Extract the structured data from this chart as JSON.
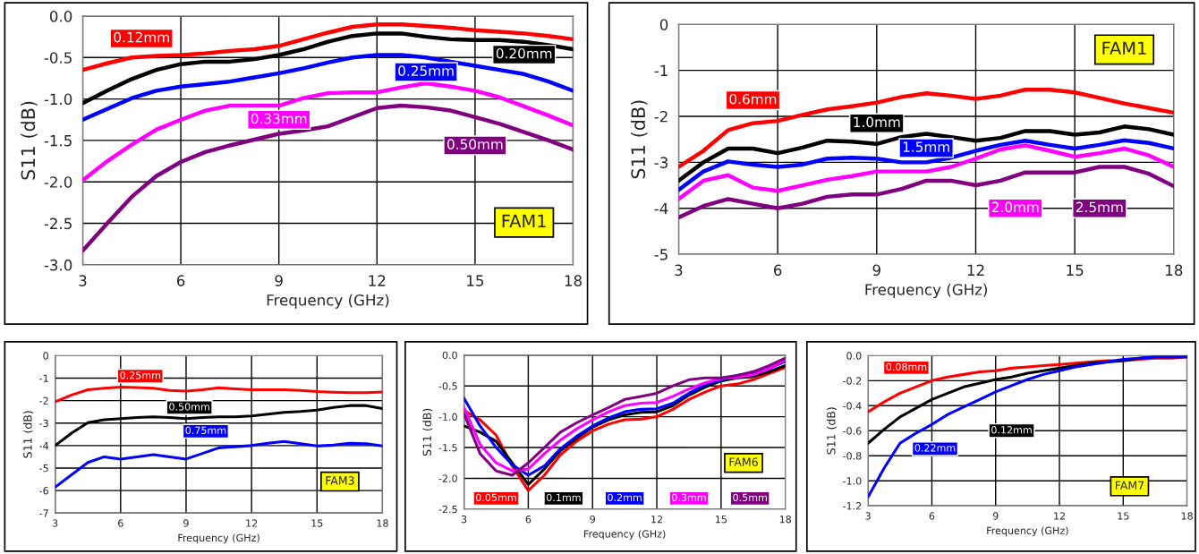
{
  "chart_data": [
    {
      "type": "line",
      "xlabel": "Frequency (GHz)",
      "ylabel": "S11 (dB)",
      "annotations": [
        "FAM1"
      ],
      "grid": true,
      "xlim": [
        3,
        18
      ],
      "xticks": [
        3,
        6,
        9,
        12,
        15,
        18
      ],
      "ylim": [
        -3.0,
        0.0
      ],
      "yticks": [
        {
          "value": -3,
          "label": "-3.0"
        },
        {
          "value": -2.5,
          "label": "-2.5"
        },
        {
          "value": -2,
          "label": "-2.0"
        },
        {
          "value": -1.5,
          "label": "-1.5"
        },
        {
          "value": -1,
          "label": "-1.0"
        },
        {
          "value": -0.5,
          "label": "-0.5"
        },
        {
          "value": 0,
          "label": "0.0"
        }
      ],
      "x": [
        3,
        3.75,
        4.5,
        5.25,
        6,
        6.75,
        7.5,
        8.25,
        9,
        9.75,
        10.5,
        11.25,
        12,
        12.75,
        13.5,
        14.25,
        15,
        15.75,
        16.5,
        17.25,
        18
      ],
      "series": [
        {
          "name": "0.12mm",
          "color": "#ff0000",
          "values": [
            -0.65,
            -0.57,
            -0.5,
            -0.48,
            -0.47,
            -0.45,
            -0.42,
            -0.4,
            -0.36,
            -0.28,
            -0.2,
            -0.13,
            -0.1,
            -0.1,
            -0.12,
            -0.14,
            -0.17,
            -0.19,
            -0.21,
            -0.24,
            -0.28
          ]
        },
        {
          "name": "0.20mm",
          "color": "#000000",
          "values": [
            -1.05,
            -0.9,
            -0.76,
            -0.65,
            -0.58,
            -0.55,
            -0.55,
            -0.52,
            -0.47,
            -0.4,
            -0.31,
            -0.24,
            -0.21,
            -0.21,
            -0.25,
            -0.28,
            -0.29,
            -0.29,
            -0.31,
            -0.35,
            -0.4
          ]
        },
        {
          "name": "0.25mm",
          "color": "#0000ff",
          "values": [
            -1.25,
            -1.12,
            -0.99,
            -0.9,
            -0.85,
            -0.82,
            -0.79,
            -0.74,
            -0.69,
            -0.63,
            -0.56,
            -0.5,
            -0.47,
            -0.47,
            -0.5,
            -0.55,
            -0.6,
            -0.65,
            -0.7,
            -0.79,
            -0.9
          ]
        },
        {
          "name": "0.33mm",
          "color": "#ff00ff",
          "values": [
            -1.98,
            -1.75,
            -1.55,
            -1.37,
            -1.25,
            -1.14,
            -1.08,
            -1.08,
            -1.08,
            -0.99,
            -0.93,
            -0.92,
            -0.92,
            -0.86,
            -0.81,
            -0.85,
            -0.9,
            -0.98,
            -1.09,
            -1.2,
            -1.32
          ]
        },
        {
          "name": "0.50mm",
          "color": "#800080",
          "values": [
            -2.83,
            -2.5,
            -2.18,
            -1.93,
            -1.76,
            -1.64,
            -1.56,
            -1.49,
            -1.42,
            -1.38,
            -1.33,
            -1.22,
            -1.11,
            -1.08,
            -1.1,
            -1.14,
            -1.22,
            -1.3,
            -1.4,
            -1.5,
            -1.61
          ]
        }
      ]
    },
    {
      "type": "line",
      "xlabel": "Frequency (GHz)",
      "ylabel": "S11 (dB)",
      "annotations": [
        "FAM1"
      ],
      "grid": true,
      "xlim": [
        3,
        18
      ],
      "xticks": [
        3,
        6,
        9,
        12,
        15,
        18
      ],
      "ylim": [
        -5,
        0
      ],
      "yticks": [
        -5,
        -4,
        -3,
        -2,
        -1,
        0
      ],
      "x": [
        3,
        3.75,
        4.5,
        5.25,
        6,
        6.75,
        7.5,
        8.25,
        9,
        9.75,
        10.5,
        11.25,
        12,
        12.75,
        13.5,
        14.25,
        15,
        15.75,
        16.5,
        17.25,
        18
      ],
      "series": [
        {
          "name": "0.6mm",
          "color": "#ff0000",
          "values": [
            -3.1,
            -2.75,
            -2.3,
            -2.15,
            -2.1,
            -1.97,
            -1.85,
            -1.78,
            -1.7,
            -1.58,
            -1.5,
            -1.55,
            -1.62,
            -1.55,
            -1.42,
            -1.42,
            -1.48,
            -1.6,
            -1.72,
            -1.82,
            -1.92
          ]
        },
        {
          "name": "1.0mm",
          "color": "#000000",
          "values": [
            -3.4,
            -3.0,
            -2.7,
            -2.7,
            -2.8,
            -2.68,
            -2.53,
            -2.55,
            -2.6,
            -2.45,
            -2.38,
            -2.45,
            -2.53,
            -2.47,
            -2.32,
            -2.32,
            -2.4,
            -2.35,
            -2.22,
            -2.28,
            -2.4
          ]
        },
        {
          "name": "1.5mm",
          "color": "#0000ff",
          "values": [
            -3.6,
            -3.2,
            -2.98,
            -3.05,
            -3.1,
            -3.05,
            -2.92,
            -2.9,
            -2.92,
            -3.0,
            -3.0,
            -2.9,
            -2.75,
            -2.62,
            -2.53,
            -2.62,
            -2.7,
            -2.62,
            -2.52,
            -2.58,
            -2.7
          ]
        },
        {
          "name": "2.0mm",
          "color": "#ff00ff",
          "values": [
            -3.8,
            -3.4,
            -3.28,
            -3.55,
            -3.62,
            -3.5,
            -3.38,
            -3.3,
            -3.2,
            -3.2,
            -3.2,
            -3.1,
            -2.92,
            -2.72,
            -2.63,
            -2.75,
            -2.88,
            -2.8,
            -2.7,
            -2.85,
            -3.1
          ]
        },
        {
          "name": "2.5mm",
          "color": "#800080",
          "values": [
            -4.2,
            -3.95,
            -3.8,
            -3.9,
            -4.0,
            -3.9,
            -3.75,
            -3.7,
            -3.7,
            -3.58,
            -3.4,
            -3.4,
            -3.5,
            -3.4,
            -3.22,
            -3.22,
            -3.22,
            -3.1,
            -3.1,
            -3.25,
            -3.52
          ]
        }
      ]
    },
    {
      "type": "line",
      "xlabel": "Frequency (GHz)",
      "ylabel": "S11 (dB)",
      "annotations": [
        "FAM3"
      ],
      "grid": true,
      "xlim": [
        3,
        18
      ],
      "xticks": [
        3,
        6,
        9,
        12,
        15,
        18
      ],
      "ylim": [
        -7,
        0
      ],
      "yticks": [
        -7,
        -6,
        -5,
        -4,
        -3,
        -2,
        -1,
        0
      ],
      "x": [
        3,
        3.75,
        4.5,
        5.25,
        6,
        6.75,
        7.5,
        8.25,
        9,
        9.75,
        10.5,
        11.25,
        12,
        12.75,
        13.5,
        14.25,
        15,
        15.75,
        16.5,
        17.25,
        18
      ],
      "series": [
        {
          "name": "0.25mm",
          "color": "#ff0000",
          "values": [
            -2.05,
            -1.75,
            -1.52,
            -1.45,
            -1.4,
            -1.42,
            -1.45,
            -1.55,
            -1.58,
            -1.52,
            -1.43,
            -1.48,
            -1.52,
            -1.52,
            -1.52,
            -1.55,
            -1.6,
            -1.63,
            -1.65,
            -1.65,
            -1.62
          ]
        },
        {
          "name": "0.50mm",
          "color": "#000000",
          "values": [
            -4.0,
            -3.45,
            -2.98,
            -2.85,
            -2.8,
            -2.75,
            -2.72,
            -2.75,
            -2.8,
            -2.75,
            -2.72,
            -2.72,
            -2.68,
            -2.6,
            -2.52,
            -2.48,
            -2.42,
            -2.3,
            -2.22,
            -2.22,
            -2.35
          ]
        },
        {
          "name": "0.75mm",
          "color": "#0000ff",
          "values": [
            -5.85,
            -5.3,
            -4.75,
            -4.5,
            -4.6,
            -4.5,
            -4.4,
            -4.5,
            -4.6,
            -4.35,
            -4.1,
            -4.05,
            -4.0,
            -3.9,
            -3.82,
            -3.92,
            -4.02,
            -3.98,
            -3.9,
            -3.92,
            -4.02
          ]
        }
      ]
    },
    {
      "type": "line",
      "xlabel": "Frequency (GHz)",
      "ylabel": "S11 (dB)",
      "annotations": [
        "FAM6"
      ],
      "grid": true,
      "xlim": [
        3,
        18
      ],
      "xticks": [
        3,
        6,
        9,
        12,
        15,
        18
      ],
      "ylim": [
        -2.5,
        0.0
      ],
      "yticks": [
        {
          "value": -2.5,
          "label": "-2.5"
        },
        {
          "value": -2,
          "label": "-2.0"
        },
        {
          "value": -1.5,
          "label": "-1.5"
        },
        {
          "value": -1,
          "label": "-1.0"
        },
        {
          "value": -0.5,
          "label": "-0.5"
        },
        {
          "value": 0,
          "label": "0.0"
        }
      ],
      "x": [
        3,
        3.75,
        4.5,
        5.25,
        6,
        6.75,
        7.5,
        8.25,
        9,
        9.75,
        10.5,
        11.25,
        12,
        12.75,
        13.5,
        14.25,
        15,
        15.75,
        16.5,
        17.25,
        18
      ],
      "series": [
        {
          "name": "0.05mm",
          "color": "#ff0000",
          "values": [
            -0.9,
            -1.05,
            -1.3,
            -1.8,
            -2.2,
            -1.95,
            -1.62,
            -1.4,
            -1.23,
            -1.12,
            -1.05,
            -1.04,
            -1.0,
            -0.88,
            -0.72,
            -0.6,
            -0.5,
            -0.47,
            -0.4,
            -0.3,
            -0.2
          ]
        },
        {
          "name": "0.1mm",
          "color": "#000000",
          "values": [
            -1.15,
            -1.25,
            -1.4,
            -1.75,
            -2.1,
            -1.85,
            -1.55,
            -1.35,
            -1.17,
            -1.05,
            -0.97,
            -0.93,
            -0.92,
            -0.82,
            -0.65,
            -0.52,
            -0.42,
            -0.37,
            -0.35,
            -0.27,
            -0.17
          ]
        },
        {
          "name": "0.2mm",
          "color": "#0000ff",
          "values": [
            -0.7,
            -1.15,
            -1.5,
            -1.78,
            -1.95,
            -1.8,
            -1.52,
            -1.32,
            -1.15,
            -1.02,
            -0.92,
            -0.88,
            -0.87,
            -0.78,
            -0.62,
            -0.48,
            -0.4,
            -0.33,
            -0.3,
            -0.22,
            -0.1
          ]
        },
        {
          "name": "0.3mm",
          "color": "#ff00ff",
          "values": [
            -0.85,
            -1.45,
            -1.75,
            -1.88,
            -1.85,
            -1.6,
            -1.38,
            -1.2,
            -1.05,
            -0.92,
            -0.82,
            -0.78,
            -0.77,
            -0.67,
            -0.55,
            -0.45,
            -0.38,
            -0.36,
            -0.32,
            -0.22,
            -0.08
          ]
        },
        {
          "name": "0.5mm",
          "color": "#800080",
          "values": [
            -0.95,
            -1.6,
            -1.88,
            -1.95,
            -1.75,
            -1.5,
            -1.25,
            -1.1,
            -0.97,
            -0.85,
            -0.72,
            -0.67,
            -0.62,
            -0.5,
            -0.4,
            -0.37,
            -0.37,
            -0.33,
            -0.27,
            -0.17,
            -0.05
          ]
        }
      ]
    },
    {
      "type": "line",
      "xlabel": "Frequency (GHz)",
      "ylabel": "S11 (dB)",
      "annotations": [
        "FAM7"
      ],
      "grid": true,
      "xlim": [
        3,
        18
      ],
      "xticks": [
        3,
        6,
        9,
        12,
        15,
        18
      ],
      "ylim": [
        -1.2,
        0.0
      ],
      "yticks": [
        {
          "value": -1.2,
          "label": "-1.2"
        },
        {
          "value": -1,
          "label": "-1.0"
        },
        {
          "value": -0.8,
          "label": "-0.8"
        },
        {
          "value": -0.6,
          "label": "-0.6"
        },
        {
          "value": -0.4,
          "label": "-0.4"
        },
        {
          "value": -0.2,
          "label": "-0.2"
        },
        {
          "value": 0,
          "label": "0.0"
        }
      ],
      "x": [
        3,
        3.75,
        4.5,
        5.25,
        6,
        6.75,
        7.5,
        8.25,
        9,
        9.75,
        10.5,
        11.25,
        12,
        12.75,
        13.5,
        14.25,
        15,
        15.75,
        16.5,
        17.25,
        18
      ],
      "series": [
        {
          "name": "0.08mm",
          "color": "#ff0000",
          "values": [
            -0.45,
            -0.37,
            -0.3,
            -0.25,
            -0.2,
            -0.17,
            -0.15,
            -0.13,
            -0.12,
            -0.1,
            -0.09,
            -0.08,
            -0.07,
            -0.06,
            -0.05,
            -0.04,
            -0.04,
            -0.03,
            -0.02,
            -0.02,
            -0.01
          ]
        },
        {
          "name": "0.12mm",
          "color": "#000000",
          "values": [
            -0.7,
            -0.59,
            -0.49,
            -0.42,
            -0.35,
            -0.3,
            -0.25,
            -0.22,
            -0.19,
            -0.17,
            -0.14,
            -0.12,
            -0.1,
            -0.08,
            -0.06,
            -0.05,
            -0.04,
            -0.02,
            -0.01,
            -0.01,
            -0.01
          ]
        },
        {
          "name": "0.22mm",
          "color": "#0000ff",
          "values": [
            -1.13,
            -0.9,
            -0.7,
            -0.62,
            -0.55,
            -0.47,
            -0.41,
            -0.35,
            -0.29,
            -0.24,
            -0.19,
            -0.15,
            -0.12,
            -0.09,
            -0.07,
            -0.05,
            -0.03,
            -0.02,
            -0.01,
            -0.01,
            -0.01
          ]
        }
      ]
    }
  ]
}
